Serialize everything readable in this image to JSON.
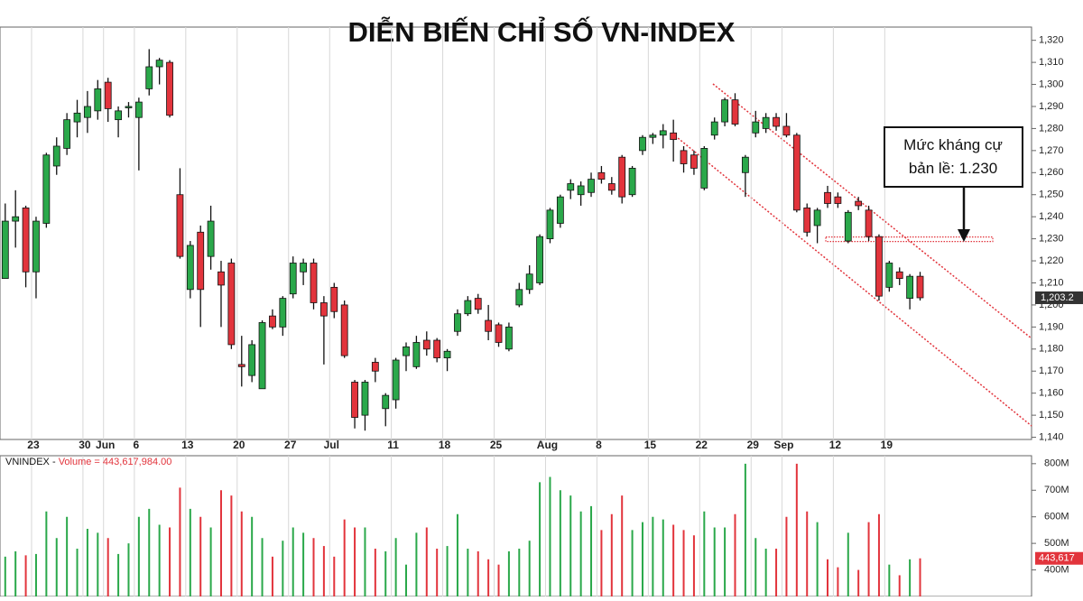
{
  "chart_data": {
    "type": "candlestick",
    "title": "DIỄN BIẾN CHỈ SỐ VN-INDEX",
    "annotation": "Mức kháng cự\nbản lề: 1.230",
    "resistance_level": 1230,
    "last_price_label": "1,203.2",
    "volume_header": [
      "VNINDEX - ",
      "Volume = 443,617,984.00"
    ],
    "last_volume_label": "443,617",
    "up_color": "#2aa84a",
    "down_color": "#e2343c",
    "grid": "x",
    "categories": [
      null,
      null,
      null,
      "23",
      null,
      null,
      null,
      null,
      "30",
      null,
      "Jun",
      null,
      null,
      "6",
      null,
      null,
      null,
      null,
      "13",
      null,
      null,
      null,
      null,
      "20",
      null,
      null,
      null,
      null,
      "27",
      null,
      null,
      null,
      "Jul",
      null,
      null,
      null,
      null,
      null,
      "11",
      null,
      null,
      null,
      null,
      "18",
      null,
      null,
      null,
      null,
      "25",
      null,
      null,
      null,
      null,
      "Aug",
      null,
      null,
      null,
      null,
      "8",
      null,
      null,
      null,
      null,
      "15",
      null,
      null,
      null,
      null,
      "22",
      null,
      null,
      null,
      null,
      "29",
      null,
      null,
      "Sep",
      null,
      null,
      null,
      null,
      "12",
      null,
      null,
      null,
      null,
      "19",
      null,
      null,
      null
    ],
    "open": [
      1212,
      1238,
      1244,
      1215,
      1237,
      1263,
      1271,
      1283,
      1285,
      1288,
      1301,
      1284,
      1290,
      1285,
      1298,
      1308,
      1310,
      1250,
      1207,
      1233,
      1222,
      1215,
      1219,
      1173,
      1168,
      1162,
      1195,
      1190,
      1205,
      1215,
      1219,
      1201,
      1208,
      1200,
      1165,
      1150,
      1174,
      1153,
      1157,
      1177,
      1172,
      1184,
      1184,
      1176,
      1188,
      1196,
      1203,
      1193,
      1191,
      1180,
      1200,
      1207,
      1210,
      1230,
      1237,
      1252,
      1250,
      1251,
      1260,
      1255,
      1267,
      1250,
      1270,
      1276,
      1277,
      1278,
      1270,
      1268,
      1253,
      1277,
      1283,
      1293,
      1260,
      1278,
      1280,
      1285,
      1281,
      1277,
      1244,
      1236,
      1251,
      1249,
      1229,
      1247,
      1243,
      1231,
      1208,
      1215,
      1203,
      1213
    ],
    "high": [
      1246,
      1252,
      1245,
      1240,
      1269,
      1276,
      1287,
      1293,
      1297,
      1302,
      1303,
      1290,
      1292,
      1294,
      1316,
      1312,
      1311,
      1262,
      1229,
      1236,
      1245,
      1220,
      1221,
      1186,
      1184,
      1193,
      1198,
      1204,
      1222,
      1221,
      1221,
      1204,
      1210,
      1202,
      1166,
      1166,
      1176,
      1160,
      1176,
      1183,
      1186,
      1188,
      1185,
      1180,
      1198,
      1204,
      1205,
      1200,
      1192,
      1192,
      1210,
      1218,
      1232,
      1244,
      1250,
      1257,
      1256,
      1260,
      1263,
      1258,
      1268,
      1263,
      1277,
      1278,
      1282,
      1284,
      1272,
      1270,
      1272,
      1285,
      1294,
      1296,
      1268,
      1288,
      1287,
      1287,
      1287,
      1278,
      1246,
      1244,
      1254,
      1251,
      1243,
      1249,
      1245,
      1232,
      1220,
      1217,
      1214,
      1215
    ],
    "low": [
      1212,
      1226,
      1208,
      1203,
      1235,
      1259,
      1268,
      1276,
      1278,
      1284,
      1283,
      1276,
      1285,
      1261,
      1295,
      1300,
      1285,
      1221,
      1203,
      1190,
      1216,
      1190,
      1180,
      1163,
      1165,
      1162,
      1189,
      1186,
      1203,
      1209,
      1198,
      1173,
      1194,
      1176,
      1144,
      1143,
      1165,
      1145,
      1153,
      1170,
      1171,
      1177,
      1174,
      1170,
      1186,
      1195,
      1196,
      1184,
      1181,
      1179,
      1199,
      1205,
      1209,
      1228,
      1235,
      1248,
      1245,
      1249,
      1255,
      1250,
      1246,
      1249,
      1268,
      1273,
      1271,
      1265,
      1260,
      1259,
      1252,
      1275,
      1281,
      1281,
      1249,
      1276,
      1278,
      1279,
      1276,
      1242,
      1231,
      1228,
      1244,
      1244,
      1228,
      1243,
      1229,
      1202,
      1206,
      1209,
      1198,
      1202
    ],
    "close": [
      1238,
      1240,
      1215,
      1238,
      1268,
      1272,
      1284,
      1287,
      1290,
      1298,
      1289,
      1288,
      1290,
      1292,
      1308,
      1311,
      1286,
      1222,
      1227,
      1207,
      1238,
      1209,
      1182,
      1172,
      1182,
      1192,
      1190,
      1203,
      1219,
      1219,
      1201,
      1195,
      1197,
      1177,
      1149,
      1165,
      1170,
      1159,
      1175,
      1181,
      1183,
      1180,
      1176,
      1179,
      1196,
      1202,
      1198,
      1188,
      1183,
      1190,
      1207,
      1214,
      1231,
      1243,
      1249,
      1255,
      1254,
      1257,
      1257,
      1252,
      1249,
      1262,
      1276,
      1277,
      1279,
      1275,
      1264,
      1262,
      1271,
      1283,
      1293,
      1282,
      1267,
      1283,
      1285,
      1281,
      1277,
      1243,
      1233,
      1243,
      1246,
      1246,
      1242,
      1245,
      1231,
      1204,
      1219,
      1212,
      1213,
      1203.25
    ],
    "ylim": [
      1139,
      1326
    ],
    "yticks": [
      {
        "value": 1140,
        "label": "1,140"
      },
      {
        "value": 1150,
        "label": "1,150"
      },
      {
        "value": 1160,
        "label": "1,160"
      },
      {
        "value": 1170,
        "label": "1,170"
      },
      {
        "value": 1180,
        "label": "1,180"
      },
      {
        "value": 1190,
        "label": "1,190"
      },
      {
        "value": 1200,
        "label": "1,200"
      },
      {
        "value": 1210,
        "label": "1,210"
      },
      {
        "value": 1220,
        "label": "1,220"
      },
      {
        "value": 1230,
        "label": "1,230"
      },
      {
        "value": 1240,
        "label": "1,240"
      },
      {
        "value": 1250,
        "label": "1,250"
      },
      {
        "value": 1260,
        "label": "1,260"
      },
      {
        "value": 1270,
        "label": "1,270"
      },
      {
        "value": 1280,
        "label": "1,280"
      },
      {
        "value": 1290,
        "label": "1,290"
      },
      {
        "value": 1300,
        "label": "1,300"
      },
      {
        "value": 1310,
        "label": "1,310"
      },
      {
        "value": 1320,
        "label": "1,320"
      }
    ],
    "volume": [
      450,
      470,
      455,
      460,
      620,
      520,
      600,
      480,
      555,
      540,
      520,
      460,
      500,
      600,
      630,
      570,
      560,
      710,
      630,
      600,
      560,
      700,
      680,
      620,
      600,
      520,
      450,
      510,
      560,
      540,
      520,
      490,
      450,
      590,
      560,
      560,
      480,
      470,
      520,
      420,
      540,
      560,
      480,
      490,
      610,
      480,
      470,
      440,
      420,
      470,
      480,
      510,
      730,
      750,
      700,
      680,
      620,
      640,
      550,
      610,
      680,
      550,
      580,
      600,
      590,
      570,
      550,
      530,
      620,
      560,
      560,
      610,
      800,
      520,
      480,
      480,
      600,
      800,
      620,
      580,
      440,
      410,
      540,
      400,
      580,
      610,
      420,
      380,
      440,
      443.6
    ],
    "volume_ylim": [
      300,
      830
    ],
    "volume_ticks": [
      {
        "value": 400,
        "label": "400M"
      },
      {
        "value": 500,
        "label": "500M"
      },
      {
        "value": 600,
        "label": "600M"
      },
      {
        "value": 700,
        "label": "700M"
      },
      {
        "value": 800,
        "label": "800M"
      }
    ]
  }
}
